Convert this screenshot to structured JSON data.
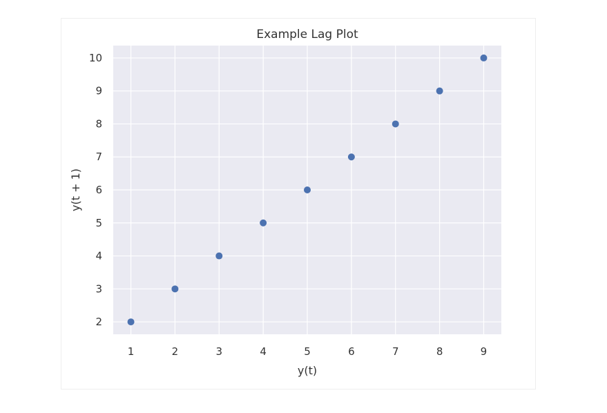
{
  "chart_data": {
    "type": "scatter",
    "title": "Example Lag Plot",
    "xlabel": "y(t)",
    "ylabel": "y(t + 1)",
    "x": [
      1,
      2,
      3,
      4,
      5,
      6,
      7,
      8,
      9
    ],
    "y": [
      2,
      3,
      4,
      5,
      6,
      7,
      8,
      9,
      10
    ],
    "xlim": [
      0.6,
      9.4
    ],
    "ylim": [
      1.625,
      10.375
    ],
    "xticks": [
      "1",
      "2",
      "3",
      "4",
      "5",
      "6",
      "7",
      "8",
      "9"
    ],
    "yticks": [
      "2",
      "3",
      "4",
      "5",
      "6",
      "7",
      "8",
      "9",
      "10"
    ],
    "grid": true,
    "colors": {
      "background": "#eaeaf2",
      "grid": "#ffffff",
      "marker": "#4c72b0"
    }
  }
}
